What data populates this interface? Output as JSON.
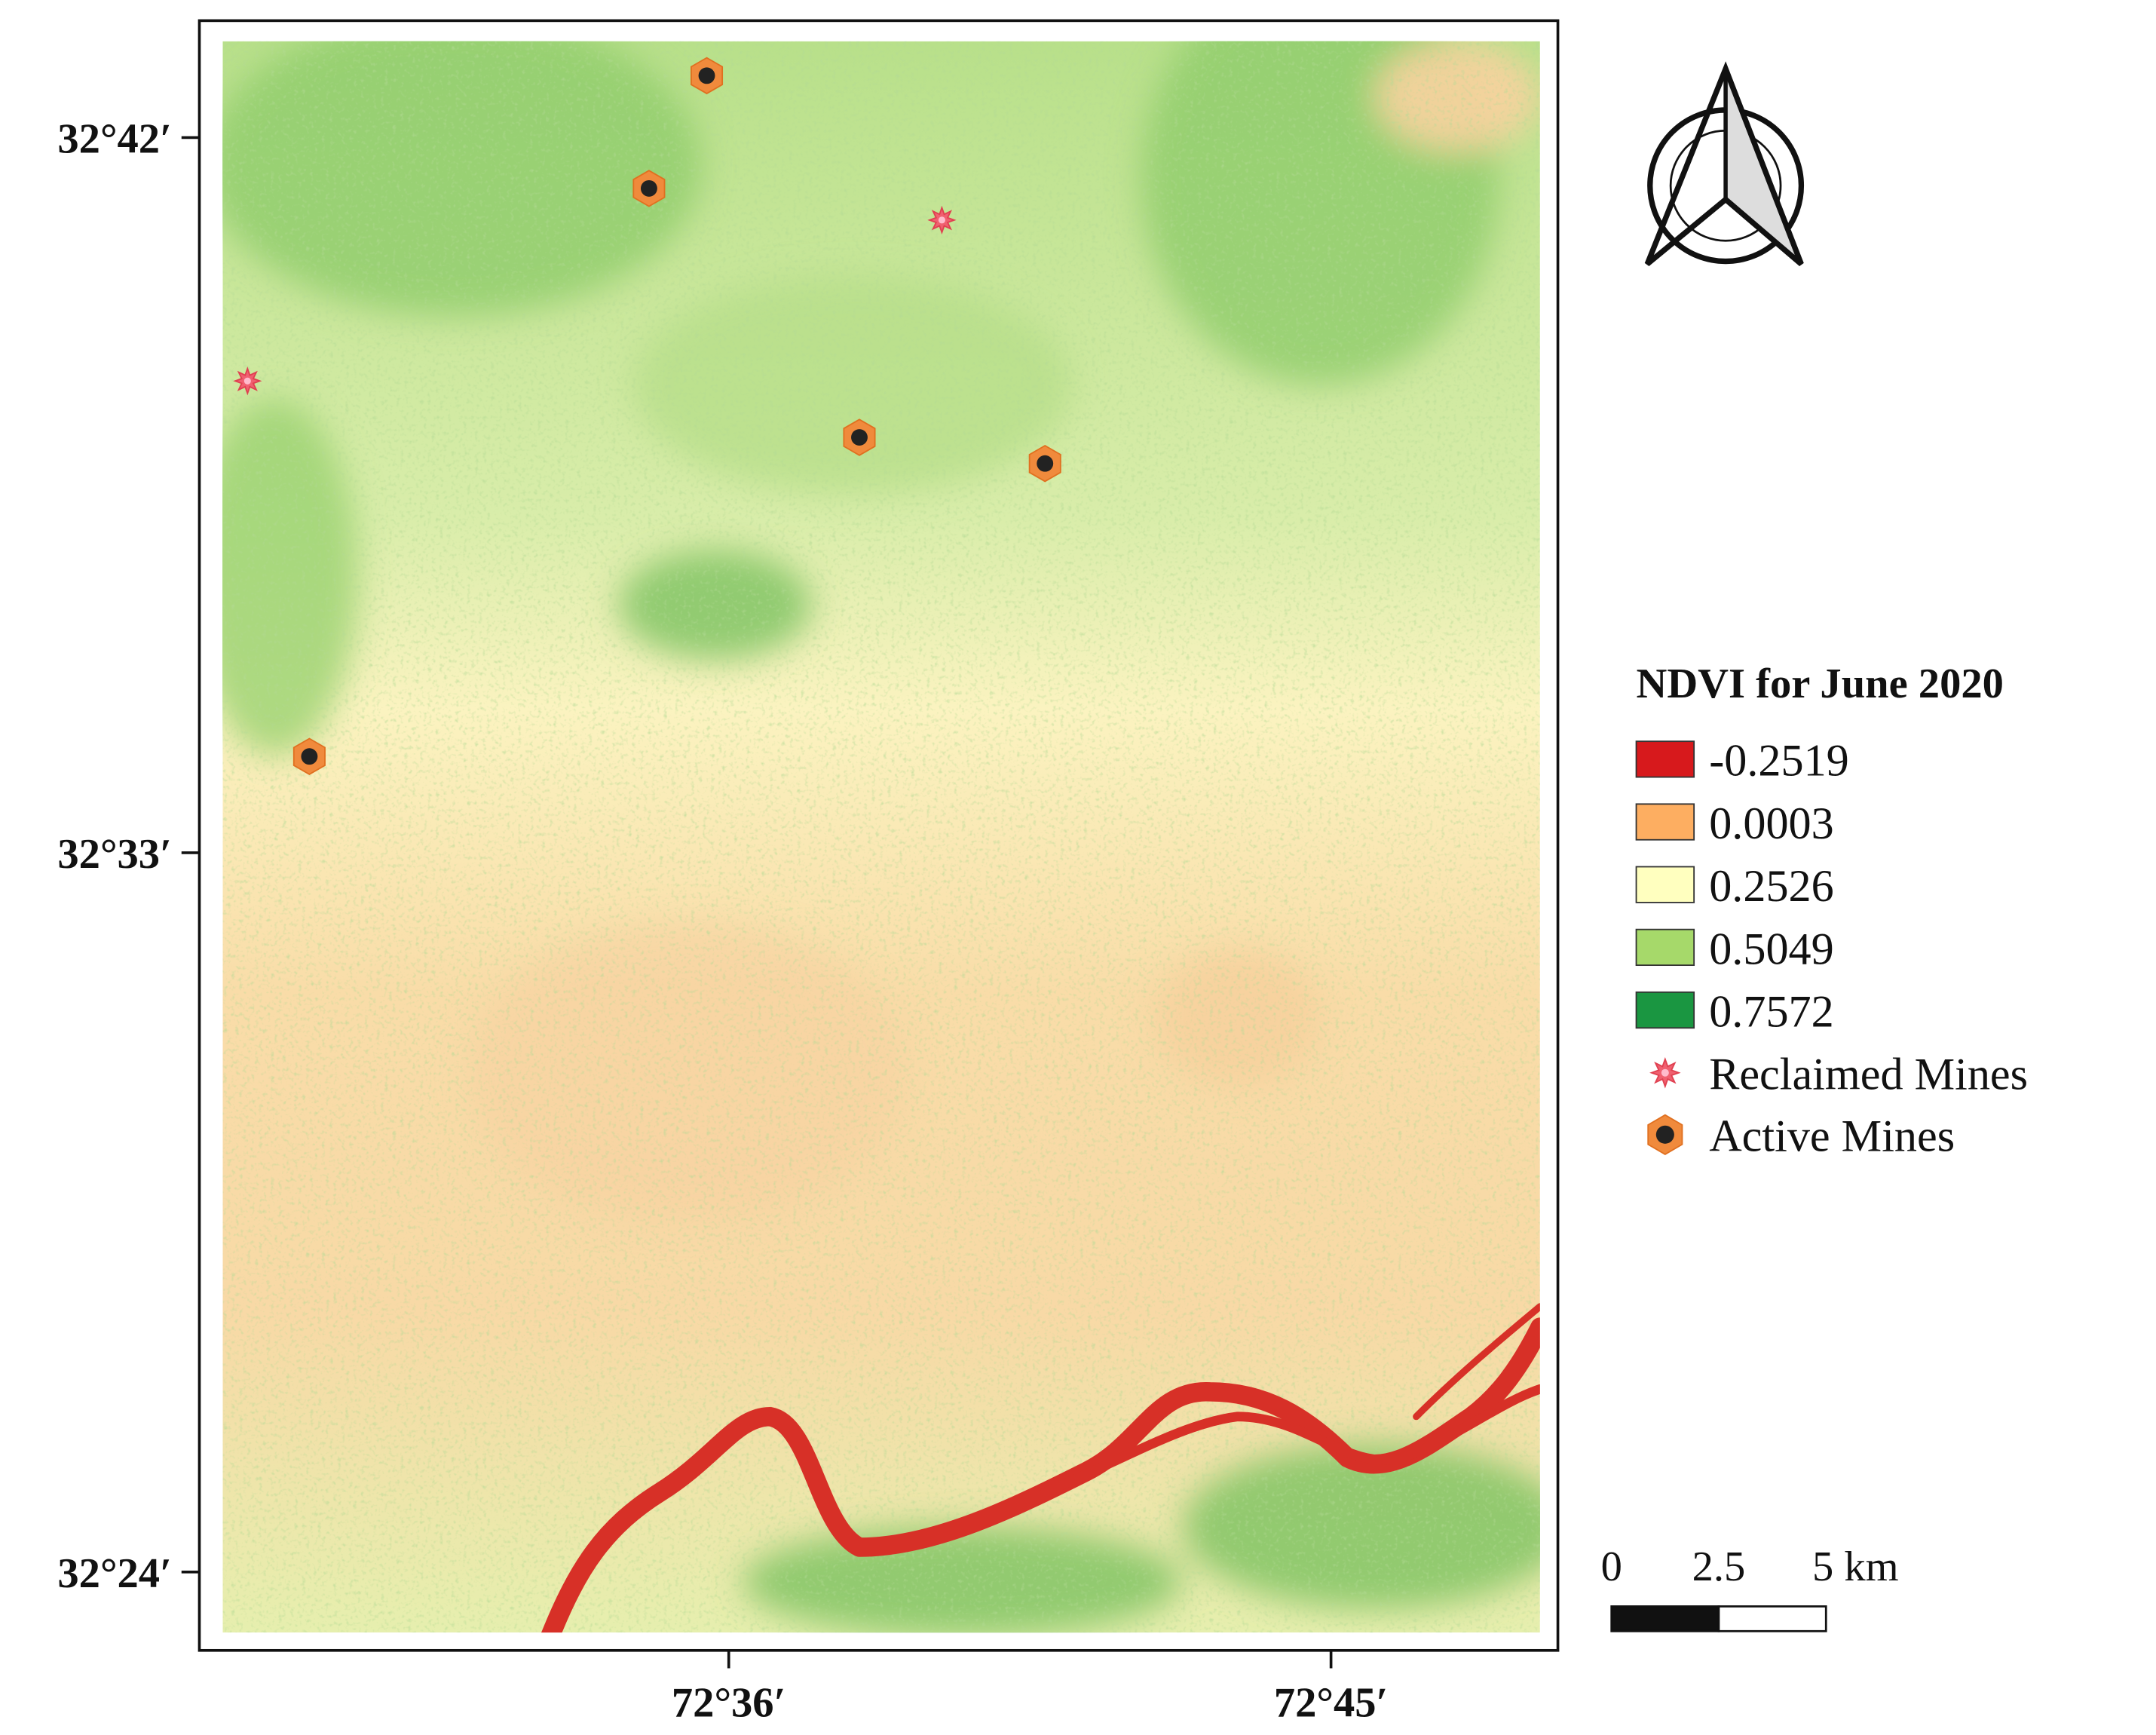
{
  "map": {
    "latitude_labels": [
      "32°42′",
      "32°33′",
      "32°24′"
    ],
    "longitude_labels": [
      "72°36′",
      "72°45′"
    ],
    "legend": {
      "title": "NDVI for June 2020",
      "classes": [
        "-0.2519",
        "0.0003",
        "0.2526",
        "0.5049",
        "0.7572"
      ],
      "class_colors": [
        "#d7191c",
        "#fdae61",
        "#ffffbf",
        "#a6d96a",
        "#1a9641"
      ],
      "points": [
        "Reclaimed Mines",
        "Active Mines"
      ]
    },
    "scale_bar": [
      "0",
      "2.5",
      "5 km"
    ]
  }
}
